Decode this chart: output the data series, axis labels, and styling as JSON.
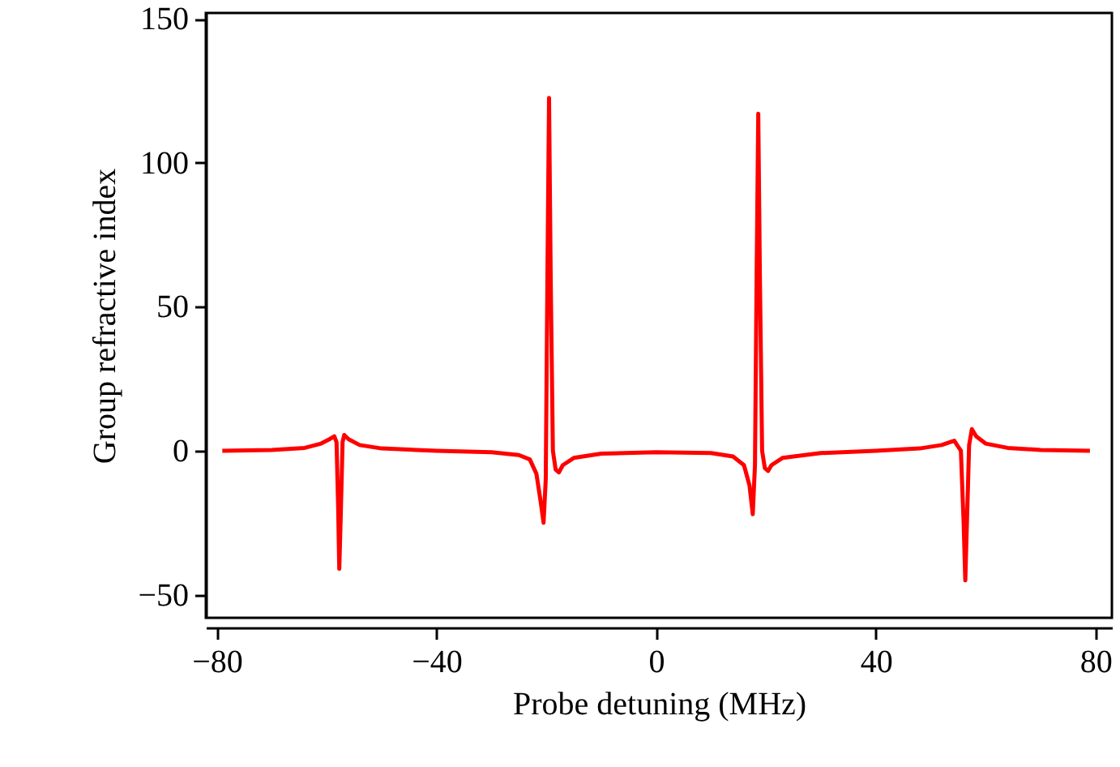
{
  "chart_data": {
    "type": "line",
    "xlabel": "Probe detuning (MHz)",
    "ylabel": "Group refractive index",
    "xlim": [
      -82,
      83
    ],
    "xticks": [
      {
        "value": -80,
        "label": "−80"
      },
      {
        "value": -40,
        "label": "−40"
      },
      0,
      40,
      80
    ],
    "ylim": [
      -58,
      152
    ],
    "yticks": [
      {
        "value": -50,
        "label": "−50"
      },
      0,
      50,
      100,
      150
    ],
    "grid": false,
    "marker": "none",
    "line_style": "solid",
    "series": [
      {
        "color": "#ff0000",
        "x": [
          -79,
          -70,
          -64,
          -61,
          -59.5,
          -58.6,
          -58.2,
          -57.9,
          -57.7,
          -57.4,
          -57.1,
          -56.8,
          -56,
          -54,
          -50,
          -40,
          -30,
          -25,
          -23,
          -21.8,
          -21,
          -20.5,
          -20.1,
          -19.8,
          -19.5,
          -19.2,
          -18.8,
          -18.3,
          -17.7,
          -17,
          -15,
          -10,
          0,
          10,
          14,
          16,
          17,
          17.6,
          18,
          18.3,
          18.6,
          18.9,
          19.3,
          19.8,
          20.4,
          21,
          23,
          30,
          40,
          48,
          52,
          53.5,
          54.3,
          54.8,
          55.5,
          56,
          56.3,
          56.6,
          57,
          57.5,
          58.3,
          60,
          64,
          70,
          79
        ],
        "values": [
          0,
          0.3,
          1,
          2.5,
          4,
          5,
          3,
          -20,
          -41,
          -20,
          3,
          5.5,
          4,
          2,
          0.8,
          0,
          -0.5,
          -1.5,
          -3,
          -8,
          -18,
          -25,
          -10,
          60,
          122.5,
          60,
          0,
          -6.5,
          -7.5,
          -5,
          -2.5,
          -1,
          -0.5,
          -0.8,
          -2,
          -5,
          -12,
          -22,
          -5,
          60,
          117,
          60,
          0,
          -6,
          -7,
          -5,
          -2.5,
          -0.8,
          0,
          0.8,
          2,
          3,
          3.5,
          2,
          0,
          -25,
          -45,
          -25,
          2,
          7.5,
          5,
          2.5,
          1,
          0.3,
          0
        ]
      }
    ]
  }
}
